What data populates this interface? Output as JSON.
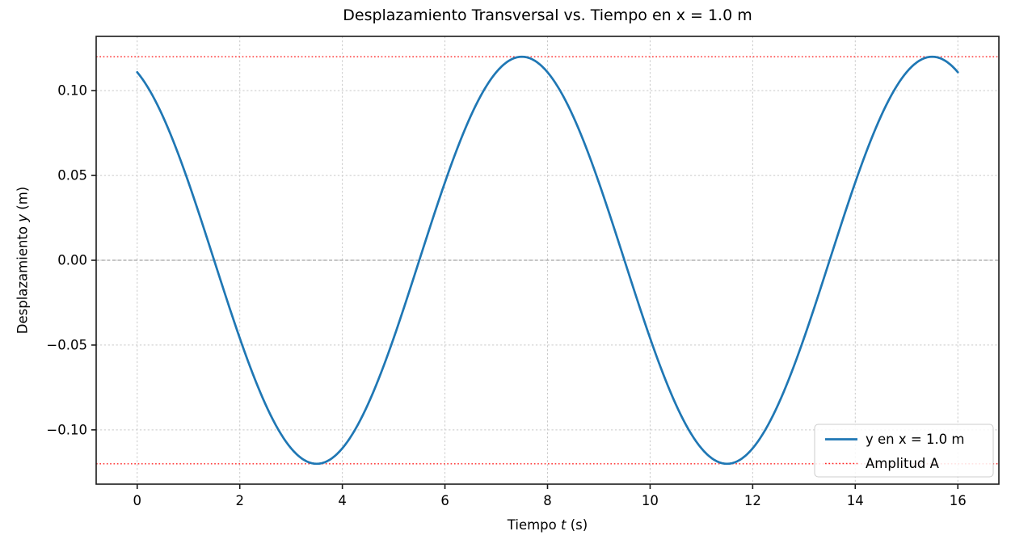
{
  "figure": {
    "background": "#ffffff"
  },
  "chart_data": {
    "type": "line",
    "title": "Desplazamiento Transversal vs. Tiempo en x = 1.0 m",
    "xlabel": "Tiempo t (s)",
    "xlabel_parts": {
      "pre": "Tiempo ",
      "var": "t",
      "post": " (s)"
    },
    "ylabel": "Desplazamiento y (m)",
    "ylabel_parts": {
      "pre": "Desplazamiento ",
      "var": "y",
      "post": " (m)"
    },
    "xlim": [
      -0.8,
      16.8
    ],
    "ylim": [
      -0.132,
      0.132
    ],
    "xticks": [
      0,
      2,
      4,
      6,
      8,
      10,
      12,
      14,
      16
    ],
    "xtick_labels": [
      "0",
      "2",
      "4",
      "6",
      "8",
      "10",
      "12",
      "14",
      "16"
    ],
    "yticks": [
      0.1,
      0.05,
      0.0,
      -0.05,
      -0.1
    ],
    "ytick_labels": [
      "0.10",
      "0.05",
      "0.00",
      "−0.05",
      "−0.10"
    ],
    "grid": {
      "visible": true,
      "style": "dashed",
      "color": "#c9c9c9"
    },
    "zero_line": {
      "y": 0.0,
      "color": "#8c8c8c",
      "style": "dashed"
    },
    "amplitude": 0.12,
    "reference_lines": [
      {
        "label": "Amplitud A",
        "y": 0.12,
        "color": "#ff0000",
        "style": "dotted"
      },
      {
        "label": "Amplitud A",
        "y": -0.12,
        "color": "#ff0000",
        "style": "dotted"
      }
    ],
    "legend": {
      "position": "lower right",
      "entries": [
        {
          "label": "y en x = 1.0 m",
          "color": "#1f77b4",
          "style": "solid"
        },
        {
          "label": "Amplitud A",
          "color": "#ff0000",
          "style": "dotted"
        }
      ]
    },
    "series": [
      {
        "name": "y en x = 1.0 m",
        "color": "#1f77b4",
        "model": {
          "form": "y(t) = A·cos(2πt/T + φ)",
          "A": 0.12,
          "T": 8.0,
          "phi_rad": 0.3927
        },
        "t_range": [
          0,
          16
        ],
        "points": [
          [
            0.0,
            0.1109
          ],
          [
            0.5,
            0.0849
          ],
          [
            1.0,
            0.0459
          ],
          [
            1.5,
            0.0
          ],
          [
            2.0,
            -0.0459
          ],
          [
            2.5,
            -0.0849
          ],
          [
            3.0,
            -0.1109
          ],
          [
            3.5,
            -0.12
          ],
          [
            4.0,
            -0.1109
          ],
          [
            4.5,
            -0.0849
          ],
          [
            5.0,
            -0.0459
          ],
          [
            5.5,
            0.0
          ],
          [
            6.0,
            0.0459
          ],
          [
            6.5,
            0.0849
          ],
          [
            7.0,
            0.1109
          ],
          [
            7.5,
            0.12
          ],
          [
            8.0,
            0.1109
          ],
          [
            8.5,
            0.0849
          ],
          [
            9.0,
            0.0459
          ],
          [
            9.5,
            0.0
          ],
          [
            10.0,
            -0.0459
          ],
          [
            10.5,
            -0.0849
          ],
          [
            11.0,
            -0.1109
          ],
          [
            11.5,
            -0.12
          ],
          [
            12.0,
            -0.1109
          ],
          [
            12.5,
            -0.0849
          ],
          [
            13.0,
            -0.0459
          ],
          [
            13.5,
            0.0
          ],
          [
            14.0,
            0.0459
          ],
          [
            14.5,
            0.0849
          ],
          [
            15.0,
            0.1109
          ],
          [
            15.5,
            0.12
          ],
          [
            16.0,
            0.1109
          ]
        ]
      }
    ]
  }
}
